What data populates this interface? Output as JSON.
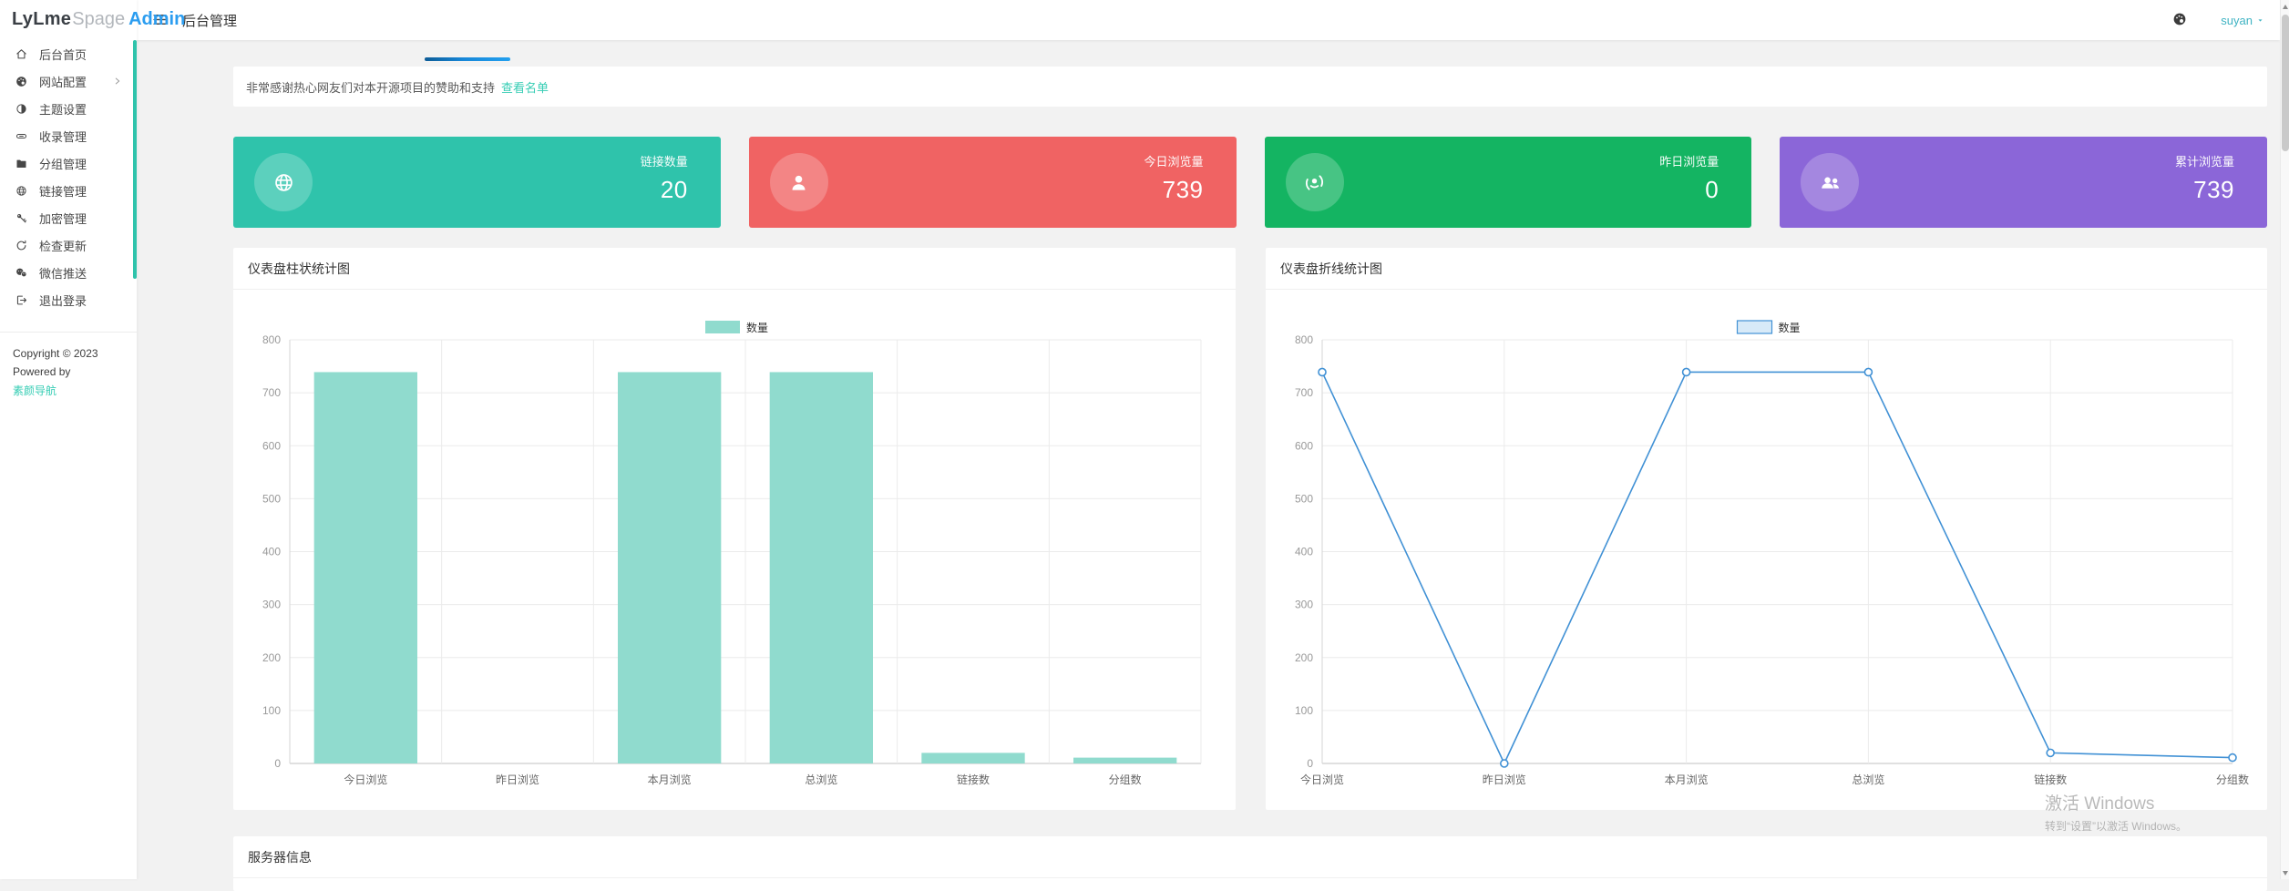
{
  "logo": {
    "part1": "LyLme",
    "part2": "Spage",
    "part3": "Admin"
  },
  "header": {
    "menu_title": "后台管理",
    "username": "suyan"
  },
  "sidebar": {
    "items": [
      {
        "label": "后台首页",
        "icon": "home-icon"
      },
      {
        "label": "网站配置",
        "icon": "palette-icon",
        "has_submenu": true
      },
      {
        "label": "主题设置",
        "icon": "theme-icon"
      },
      {
        "label": "收录管理",
        "icon": "link-icon"
      },
      {
        "label": "分组管理",
        "icon": "folder-icon"
      },
      {
        "label": "链接管理",
        "icon": "globe-icon"
      },
      {
        "label": "加密管理",
        "icon": "key-icon"
      },
      {
        "label": "检查更新",
        "icon": "refresh-icon"
      },
      {
        "label": "微信推送",
        "icon": "wechat-icon"
      },
      {
        "label": "退出登录",
        "icon": "logout-icon"
      }
    ],
    "footer": {
      "copyright": "Copyright © 2023 Powered by",
      "link": "素颜导航"
    }
  },
  "notice": {
    "text": "非常感谢热心网友们对本开源项目的赞助和支持",
    "link_label": "查看名单"
  },
  "stat_cards": [
    {
      "label": "链接数量",
      "value": "20",
      "color": "#2fc3ab",
      "icon": "globe-icon"
    },
    {
      "label": "今日浏览量",
      "value": "739",
      "color": "#f06363",
      "icon": "user-icon"
    },
    {
      "label": "昨日浏览量",
      "value": "0",
      "color": "#14b462",
      "icon": "user-focus-icon"
    },
    {
      "label": "累计浏览量",
      "value": "739",
      "color": "#8b66d8",
      "icon": "users-icon"
    }
  ],
  "chart_data": [
    {
      "type": "bar",
      "title": "仪表盘柱状统计图",
      "series_name": "数量",
      "categories": [
        "今日浏览",
        "昨日浏览",
        "本月浏览",
        "总浏览",
        "链接数",
        "分组数"
      ],
      "values": [
        739,
        0,
        739,
        739,
        20,
        11
      ],
      "ylim": [
        0,
        800
      ],
      "ytick_step": 100,
      "color": "#90dbce",
      "grid": true,
      "legend_position": "top-center"
    },
    {
      "type": "line",
      "title": "仪表盘折线统计图",
      "series_name": "数量",
      "categories": [
        "今日浏览",
        "昨日浏览",
        "本月浏览",
        "总浏览",
        "链接数",
        "分组数"
      ],
      "values": [
        739,
        0,
        739,
        739,
        20,
        11
      ],
      "ylim": [
        0,
        800
      ],
      "ytick_step": 100,
      "color": "#4191d5",
      "legend_fill": "#d8eaf8",
      "grid": true,
      "legend_position": "top-center"
    }
  ],
  "server_section": {
    "title": "服务器信息"
  },
  "watermark": {
    "line1": "激活 Windows",
    "line2": "转到“设置”以激活 Windows。"
  },
  "colors": {
    "accent": "#2fc3ab",
    "link": "#36cdb4",
    "logo_admin": "#2b9df0",
    "username": "#3fb3c3",
    "loading_bar": "#1787d8",
    "sidebar_scrollbar": "#2fc3ab",
    "bar_fill": "#90dbce",
    "line_stroke": "#4191d5"
  }
}
